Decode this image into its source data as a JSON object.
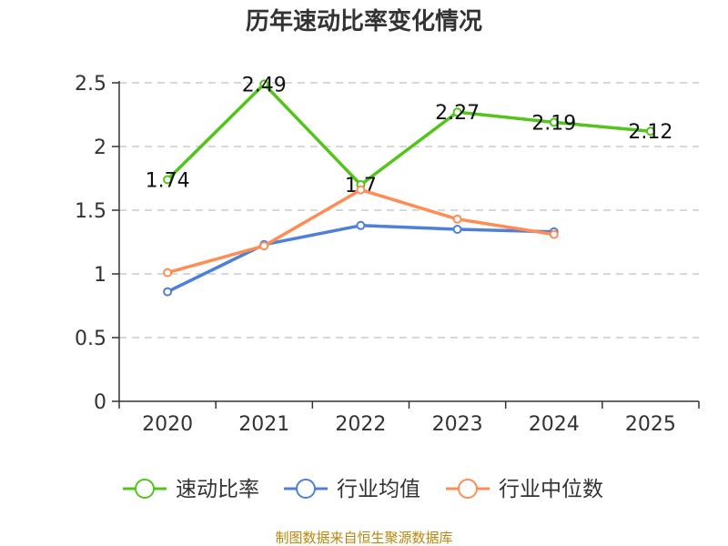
{
  "chart_data": {
    "type": "line",
    "title": "历年速动比率变化情况",
    "categories": [
      "2020",
      "2021",
      "2022",
      "2023",
      "2024",
      "2025"
    ],
    "ylim": [
      0,
      2.5
    ],
    "yticks": [
      "0",
      "0.5",
      "1",
      "1.5",
      "2",
      "2.5"
    ],
    "grid": true,
    "legend_position": "bottom",
    "series": [
      {
        "name": "速动比率",
        "color": "#52c41a",
        "values": [
          1.74,
          2.49,
          1.7,
          2.27,
          2.19,
          2.12
        ],
        "labels": [
          "1.74",
          "2.49",
          "1.7",
          "2.27",
          "2.19",
          "2.12"
        ]
      },
      {
        "name": "行业均值",
        "color": "#4e7fd9",
        "values": [
          0.86,
          1.23,
          1.38,
          1.35,
          1.33,
          null
        ]
      },
      {
        "name": "行业中位数",
        "color": "#ff8c55",
        "values": [
          1.01,
          1.22,
          1.66,
          1.43,
          1.31,
          null
        ]
      }
    ],
    "source": "制图数据来自恒生聚源数据库"
  }
}
